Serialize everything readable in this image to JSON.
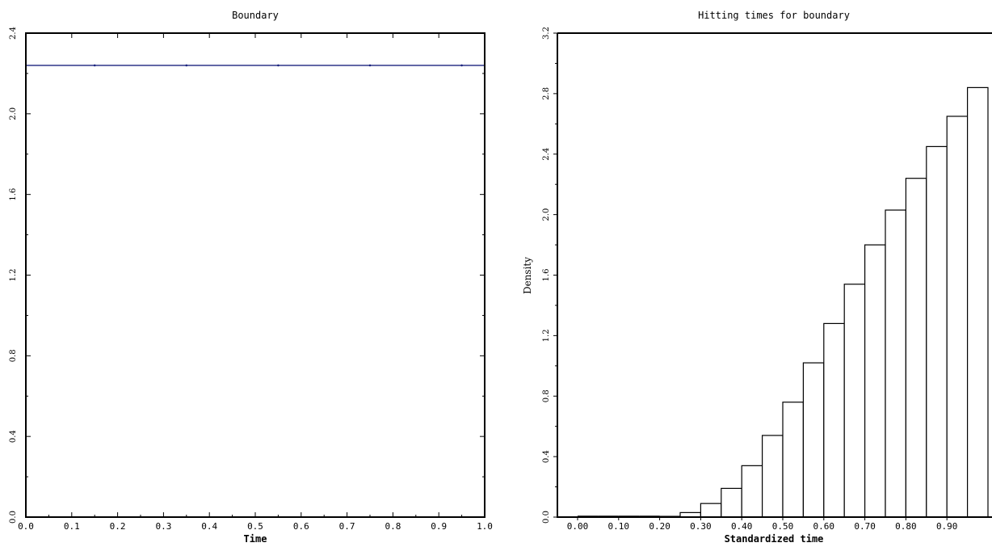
{
  "chart_data": [
    {
      "type": "line",
      "title": "Boundary",
      "xlabel": "Time",
      "ylabel": "",
      "xlim": [
        0.0,
        1.0
      ],
      "ylim": [
        0.0,
        2.4
      ],
      "x_ticks": [
        "0.0",
        "0.1",
        "0.2",
        "0.3",
        "0.4",
        "0.5",
        "0.6",
        "0.7",
        "0.8",
        "0.9",
        "1.0"
      ],
      "y_ticks": [
        "0.0",
        "0.4",
        "0.8",
        "1.2",
        "1.6",
        "2.0",
        "2.4"
      ],
      "series": [
        {
          "x": [
            0.0,
            0.15,
            0.35,
            0.55,
            0.75,
            0.95,
            1.0
          ],
          "y": [
            2.24,
            2.24,
            2.24,
            2.24,
            2.24,
            2.24,
            2.24
          ],
          "color": "#1a237e"
        }
      ]
    },
    {
      "type": "bar",
      "title": "Hitting times for boundary",
      "xlabel": "Standardized time",
      "ylabel": "Density",
      "xlim": [
        -0.05,
        1.0
      ],
      "ylim": [
        0.0,
        3.2
      ],
      "x_ticks": [
        "0.00",
        "0.10",
        "0.20",
        "0.30",
        "0.40",
        "0.50",
        "0.60",
        "0.70",
        "0.80",
        "0.90"
      ],
      "y_ticks": [
        "0.0",
        "0.4",
        "0.8",
        "1.2",
        "1.6",
        "2.0",
        "2.4",
        "2.8",
        "3.2"
      ],
      "bin_width": 0.05,
      "bin_starts": [
        0.0,
        0.05,
        0.1,
        0.15,
        0.2,
        0.25,
        0.3,
        0.35,
        0.4,
        0.45,
        0.5,
        0.55,
        0.6,
        0.65,
        0.7,
        0.75,
        0.8,
        0.85,
        0.9,
        0.95
      ],
      "values": [
        0.0,
        0.0,
        0.0,
        0.0,
        0.005,
        0.03,
        0.09,
        0.19,
        0.34,
        0.54,
        0.76,
        1.02,
        1.28,
        1.54,
        1.8,
        2.03,
        2.24,
        2.45,
        2.65,
        2.84
      ]
    }
  ]
}
